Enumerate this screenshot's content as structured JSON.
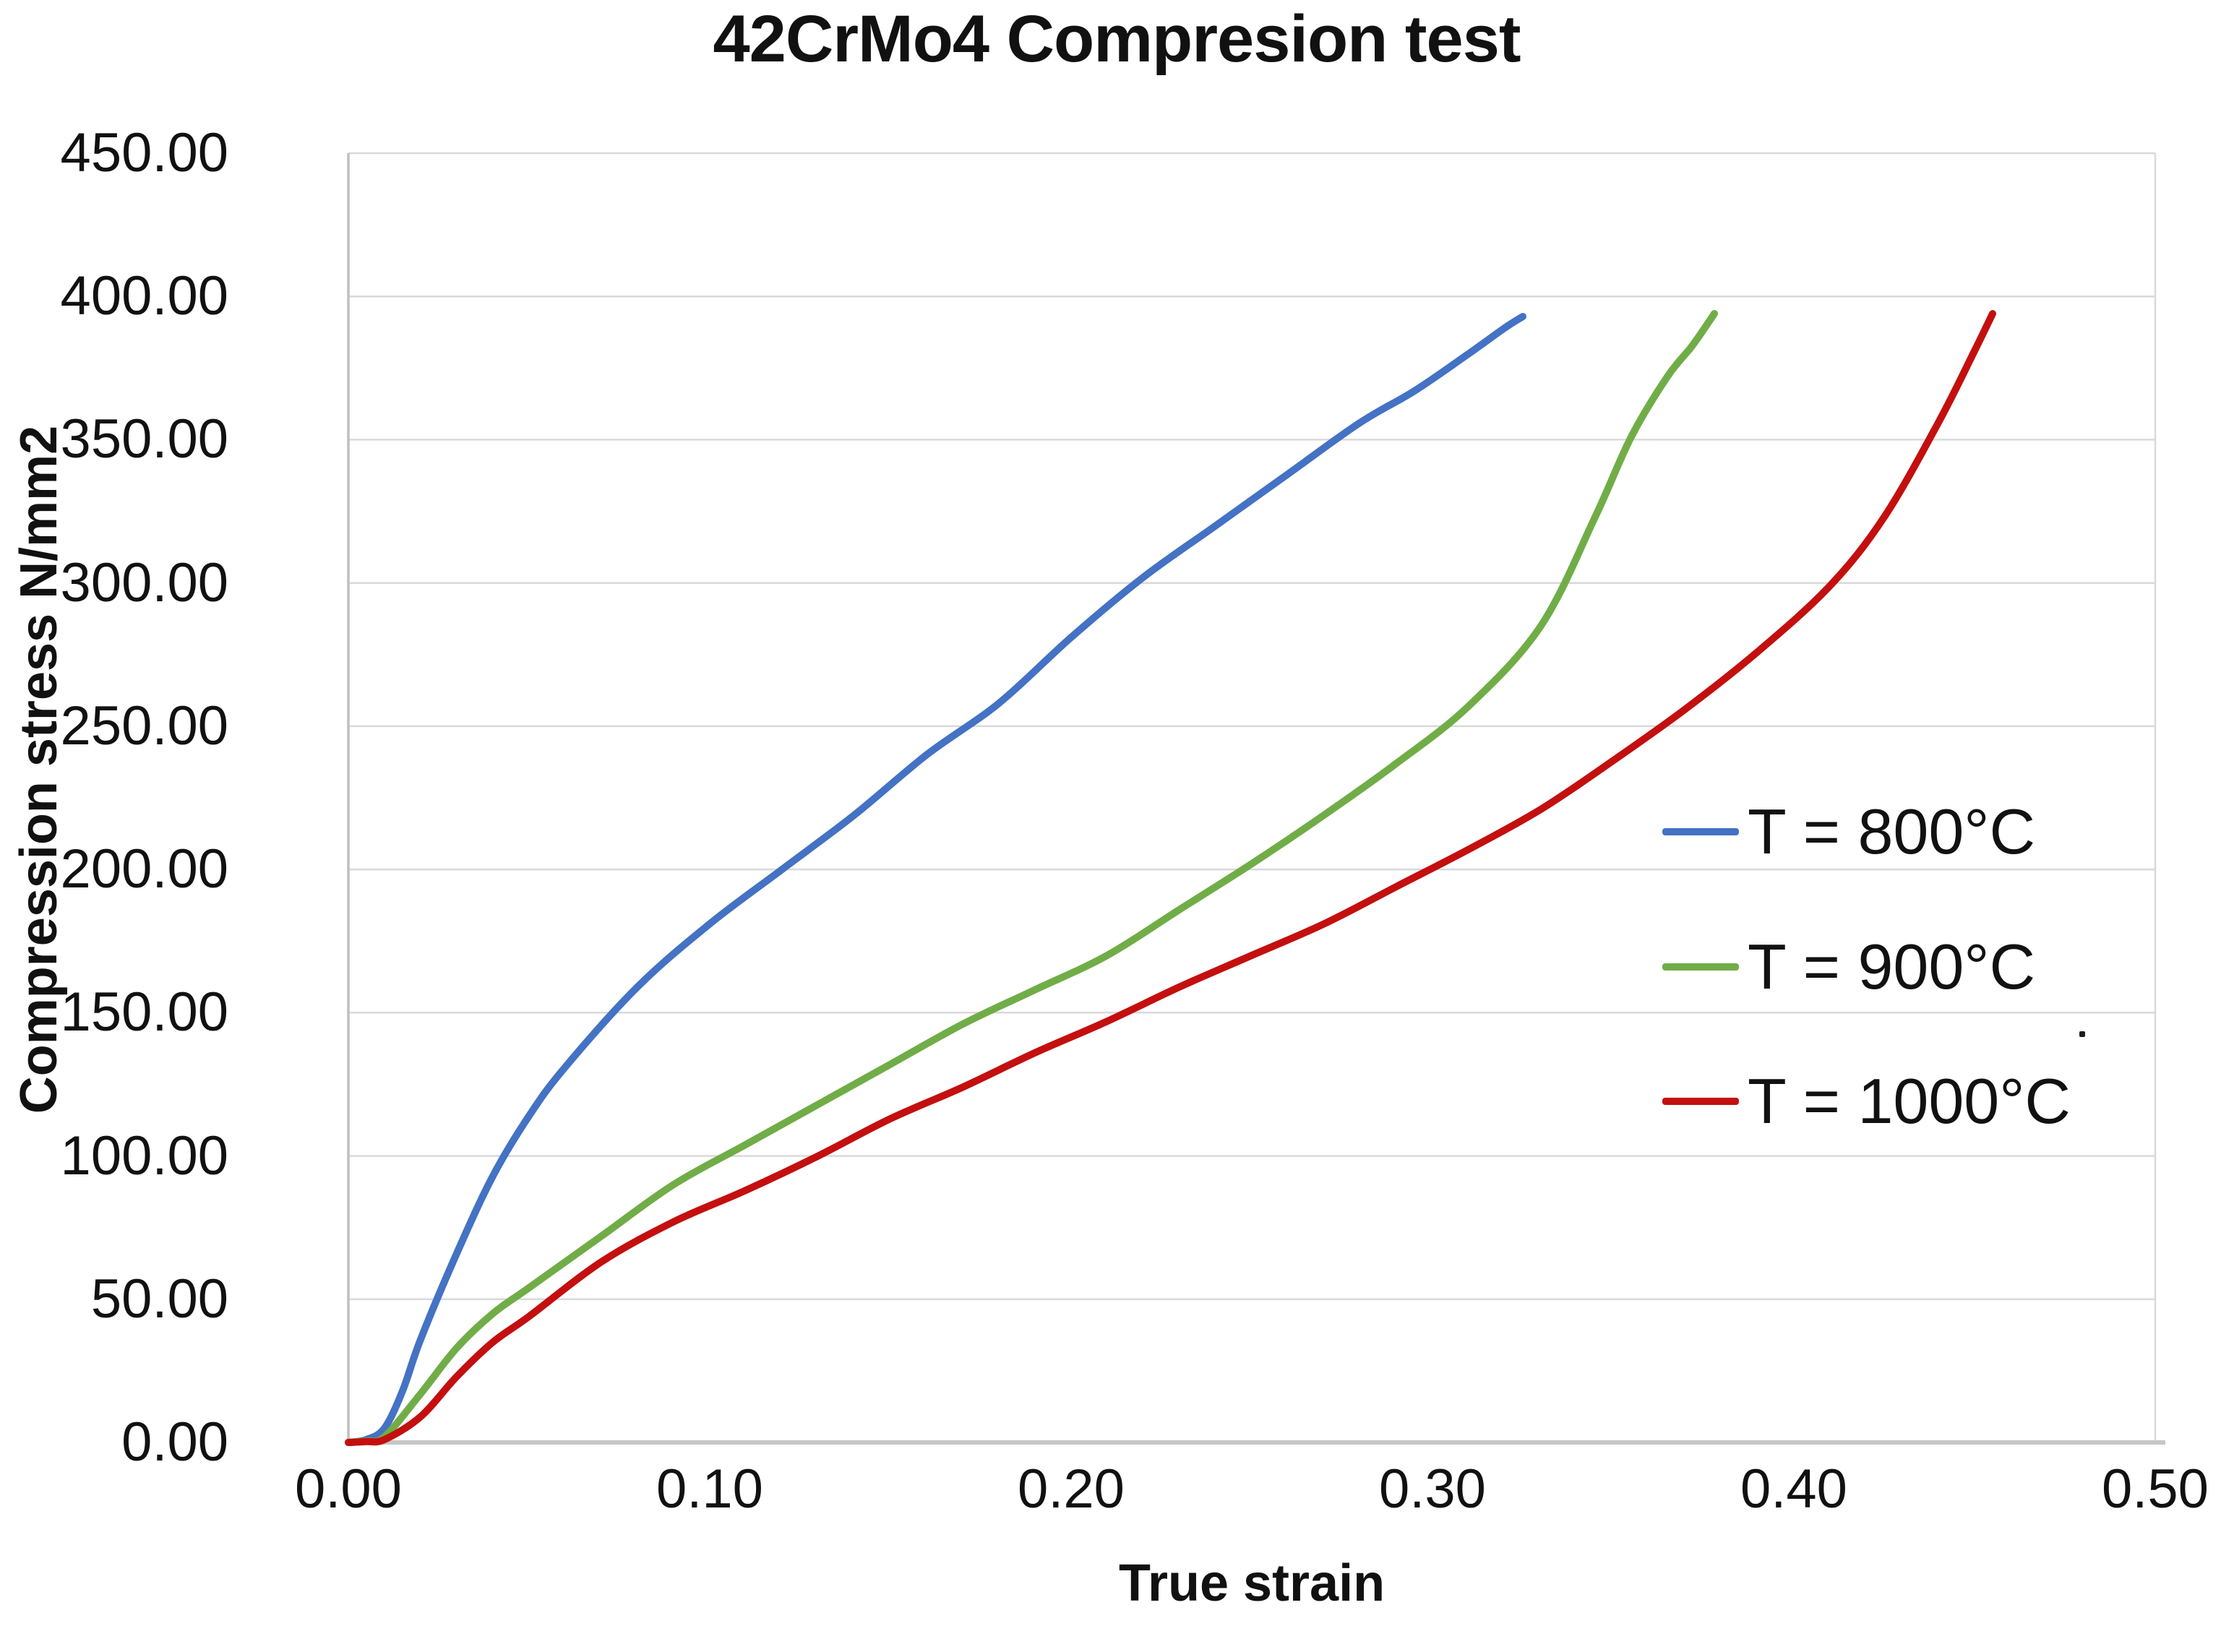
{
  "chart_data": {
    "type": "line",
    "title": "42CrMo4 Compresion test",
    "xlabel": "True strain",
    "ylabel": "Compression stress N/mm2",
    "xlim": [
      0.0,
      0.5
    ],
    "ylim": [
      0,
      450
    ],
    "x_ticks": [
      "0.00",
      "0.10",
      "0.20",
      "0.30",
      "0.40",
      "0.50"
    ],
    "x_tick_values": [
      0.0,
      0.1,
      0.2,
      0.3,
      0.4,
      0.5
    ],
    "y_ticks": [
      "0.00",
      "50.00",
      "100.00",
      "150.00",
      "200.00",
      "250.00",
      "300.00",
      "350.00",
      "400.00",
      "450.00"
    ],
    "y_tick_values": [
      0,
      50,
      100,
      150,
      200,
      250,
      300,
      350,
      400,
      450
    ],
    "grid": "horizontal-only",
    "grid_color": "#D9D9D9",
    "axis_line_color": "#BFBFBF",
    "legend_position": "right-middle",
    "series": [
      {
        "name": "T = 800°C",
        "color": "#4472C4",
        "points": [
          [
            0,
            0
          ],
          [
            0.005,
            1
          ],
          [
            0.01,
            5
          ],
          [
            0.015,
            18
          ],
          [
            0.02,
            36
          ],
          [
            0.03,
            66
          ],
          [
            0.04,
            93
          ],
          [
            0.05,
            114
          ],
          [
            0.06,
            131
          ],
          [
            0.08,
            159
          ],
          [
            0.1,
            181
          ],
          [
            0.12,
            200
          ],
          [
            0.14,
            219
          ],
          [
            0.16,
            240
          ],
          [
            0.18,
            258
          ],
          [
            0.2,
            281
          ],
          [
            0.22,
            302
          ],
          [
            0.24,
            320
          ],
          [
            0.26,
            338
          ],
          [
            0.28,
            356
          ],
          [
            0.295,
            367
          ],
          [
            0.31,
            380
          ],
          [
            0.32,
            389
          ],
          [
            0.325,
            393
          ]
        ]
      },
      {
        "name": "T = 900°C",
        "color": "#70AD47",
        "points": [
          [
            0,
            0
          ],
          [
            0.005,
            0.5
          ],
          [
            0.01,
            2
          ],
          [
            0.02,
            17
          ],
          [
            0.03,
            33
          ],
          [
            0.04,
            45
          ],
          [
            0.05,
            54
          ],
          [
            0.07,
            72
          ],
          [
            0.09,
            90
          ],
          [
            0.11,
            104
          ],
          [
            0.13,
            118
          ],
          [
            0.15,
            132
          ],
          [
            0.17,
            146
          ],
          [
            0.19,
            158
          ],
          [
            0.21,
            170
          ],
          [
            0.23,
            186
          ],
          [
            0.25,
            202
          ],
          [
            0.27,
            219
          ],
          [
            0.29,
            237
          ],
          [
            0.31,
            257
          ],
          [
            0.33,
            285
          ],
          [
            0.345,
            323
          ],
          [
            0.355,
            351
          ],
          [
            0.365,
            372
          ],
          [
            0.372,
            383
          ],
          [
            0.378,
            394
          ]
        ]
      },
      {
        "name": "T = 1000°C",
        "color": "#C40F0F",
        "points": [
          [
            0,
            0
          ],
          [
            0.005,
            0.3
          ],
          [
            0.01,
            1
          ],
          [
            0.02,
            9
          ],
          [
            0.03,
            23
          ],
          [
            0.04,
            35
          ],
          [
            0.05,
            44
          ],
          [
            0.07,
            63
          ],
          [
            0.09,
            77
          ],
          [
            0.11,
            88
          ],
          [
            0.13,
            100
          ],
          [
            0.15,
            113
          ],
          [
            0.17,
            124
          ],
          [
            0.19,
            136
          ],
          [
            0.21,
            147
          ],
          [
            0.23,
            159
          ],
          [
            0.25,
            170
          ],
          [
            0.27,
            181
          ],
          [
            0.29,
            194
          ],
          [
            0.31,
            207
          ],
          [
            0.33,
            221
          ],
          [
            0.35,
            238
          ],
          [
            0.37,
            256
          ],
          [
            0.39,
            276
          ],
          [
            0.41,
            299
          ],
          [
            0.425,
            323
          ],
          [
            0.44,
            356
          ],
          [
            0.45,
            381
          ],
          [
            0.455,
            394
          ]
        ]
      }
    ]
  }
}
